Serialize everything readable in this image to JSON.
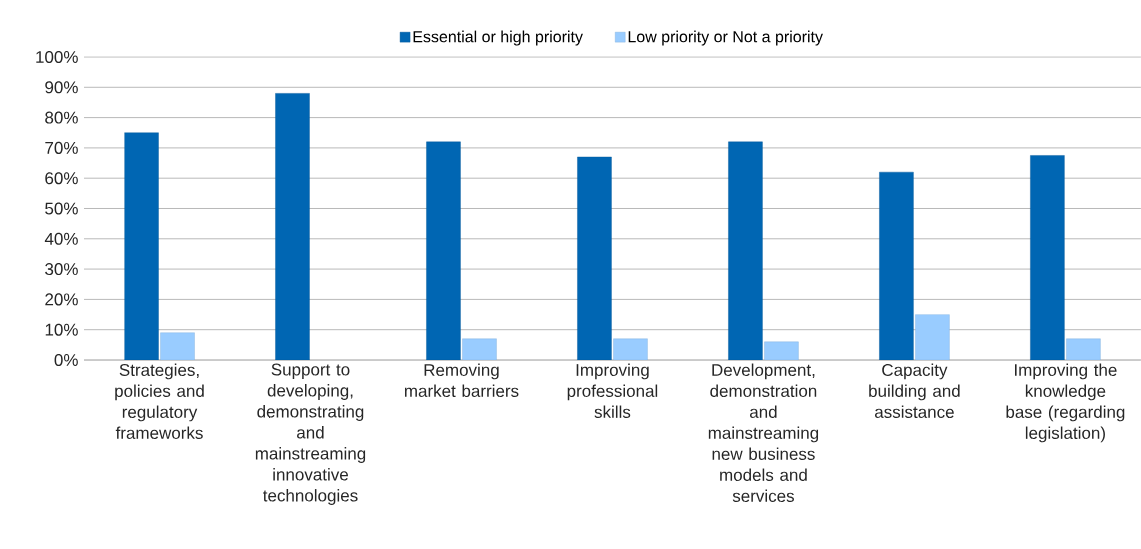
{
  "chart_data": {
    "type": "bar",
    "categories": [
      "Strategies, policies and regulatory frameworks",
      "Support to developing, demonstrating and mainstreaming innovative technologies",
      "Removing market barriers",
      "Improving professional skills",
      "Development, demonstration and mainstreaming new business models and services",
      "Capacity building and assistance",
      "Improving the knowledge base (regarding legislation)"
    ],
    "series": [
      {
        "name": "Essential or high priority",
        "color": "#0066b3",
        "values": [
          75,
          88,
          72,
          67,
          72,
          62,
          67.5
        ]
      },
      {
        "name": "Low priority or Not a priority",
        "color": "#99ccff",
        "values": [
          9,
          null,
          7,
          7,
          6,
          15,
          7
        ]
      }
    ],
    "ylim": [
      0,
      100
    ],
    "yticks": [
      {
        "value": 0,
        "label": "0%"
      },
      {
        "value": 10,
        "label": "10%"
      },
      {
        "value": 20,
        "label": "20%"
      },
      {
        "value": 30,
        "label": "30%"
      },
      {
        "value": 40,
        "label": "40%"
      },
      {
        "value": 50,
        "label": "50%"
      },
      {
        "value": 60,
        "label": "60%"
      },
      {
        "value": 70,
        "label": "70%"
      },
      {
        "value": 80,
        "label": "80%"
      },
      {
        "value": 90,
        "label": "90%"
      },
      {
        "value": 100,
        "label": "100%"
      }
    ],
    "grid": "y",
    "legend": "top"
  }
}
